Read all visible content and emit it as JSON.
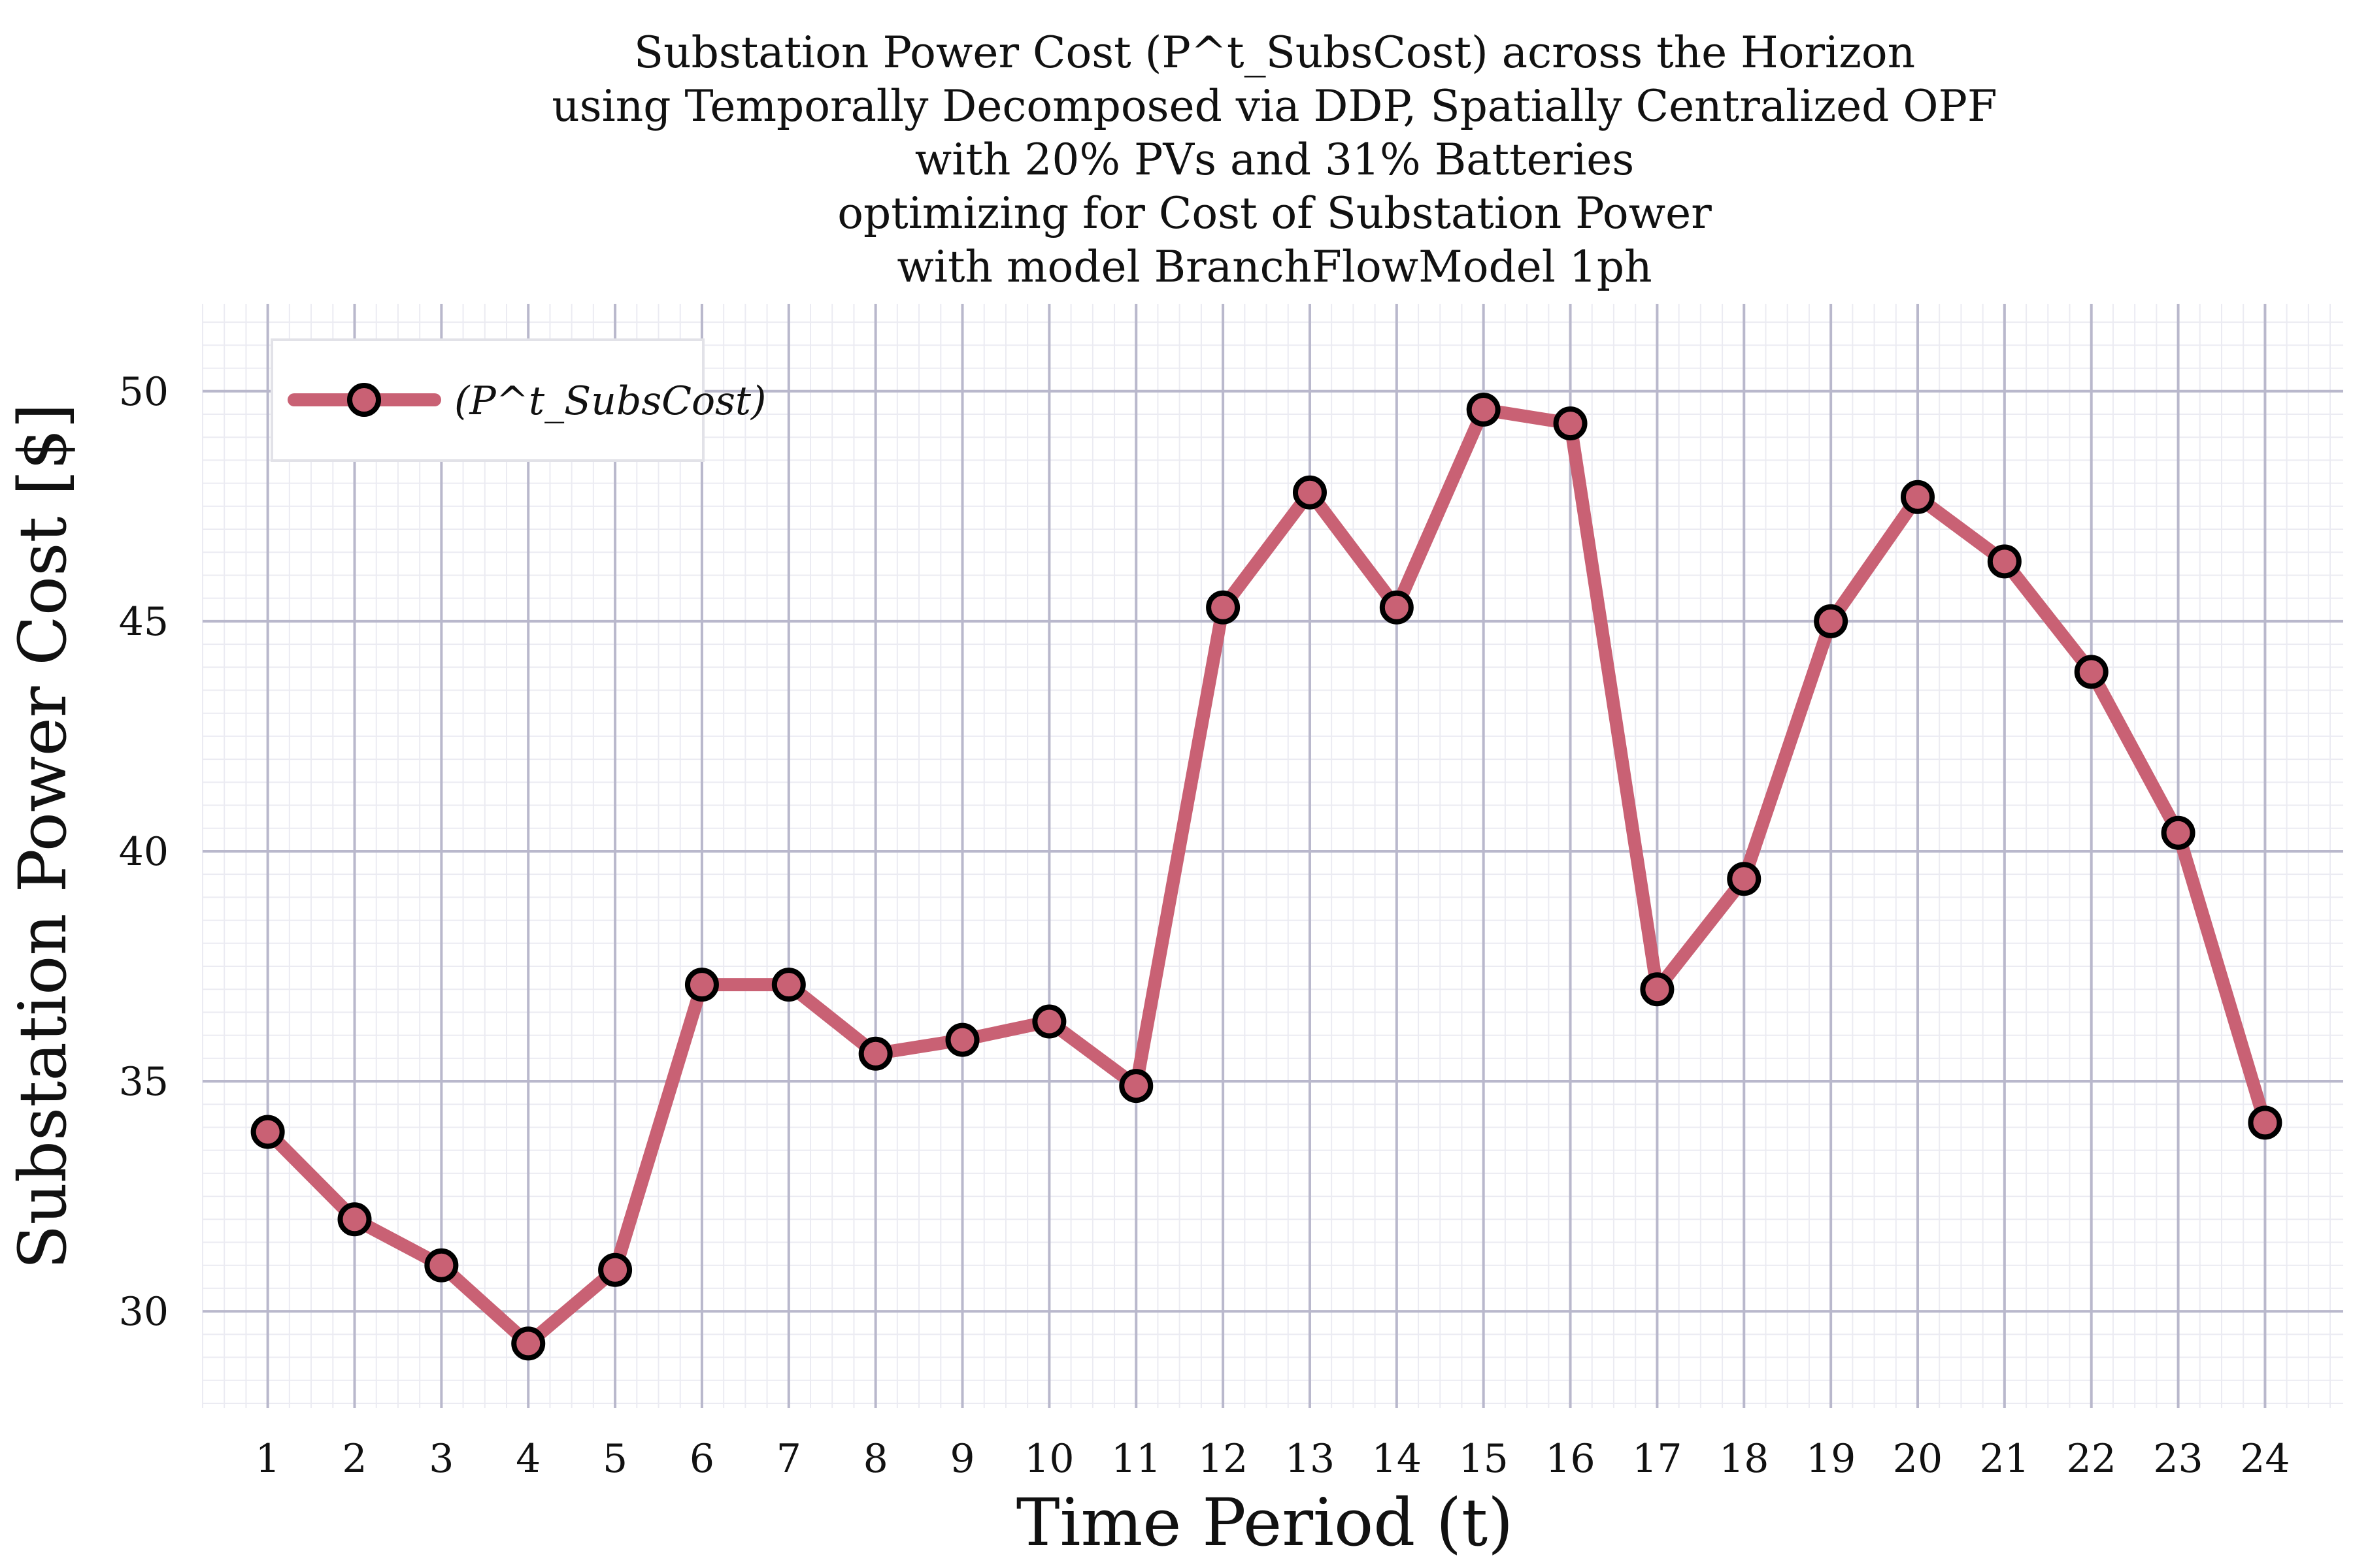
{
  "colors": {
    "series": "#c96174",
    "marker_edge": "#000000",
    "grid_major": "#b9b8cc",
    "grid_minor": "#ebebf2",
    "background": "#ffffff"
  },
  "chart_data": {
    "type": "line",
    "title_lines": [
      "Substation Power Cost (P^t_SubsCost) across the Horizon",
      "using Temporally Decomposed via DDP, Spatially Centralized OPF",
      "with 20% PVs and 31% Batteries",
      "optimizing for Cost of Substation Power",
      "with model BranchFlowModel 1ph"
    ],
    "xlabel": "Time Period (t)",
    "ylabel": "Substation Power Cost [$]",
    "x": [
      1,
      2,
      3,
      4,
      5,
      6,
      7,
      8,
      9,
      10,
      11,
      12,
      13,
      14,
      15,
      16,
      17,
      18,
      19,
      20,
      21,
      22,
      23,
      24
    ],
    "x_tick_labels": [
      "1",
      "2",
      "3",
      "4",
      "5",
      "6",
      "7",
      "8",
      "9",
      "10",
      "11",
      "12",
      "13",
      "14",
      "15",
      "16",
      "17",
      "18",
      "19",
      "20",
      "21",
      "22",
      "23",
      "24"
    ],
    "y_ticks": [
      30,
      35,
      40,
      45,
      50
    ],
    "y_tick_labels": [
      "30",
      "35",
      "40",
      "45",
      "50"
    ],
    "xlim": [
      0.25,
      24.9
    ],
    "ylim": [
      27.9,
      51.9
    ],
    "grid": true,
    "legend_position": "top-left",
    "series": [
      {
        "name": "(P^t_SubsCost)",
        "values": [
          33.9,
          32.0,
          31.0,
          29.3,
          30.9,
          37.1,
          37.1,
          35.6,
          35.9,
          36.3,
          34.9,
          45.3,
          47.8,
          45.3,
          49.6,
          49.3,
          37.0,
          39.4,
          45.0,
          47.7,
          46.3,
          43.9,
          40.4,
          34.1
        ]
      }
    ]
  }
}
